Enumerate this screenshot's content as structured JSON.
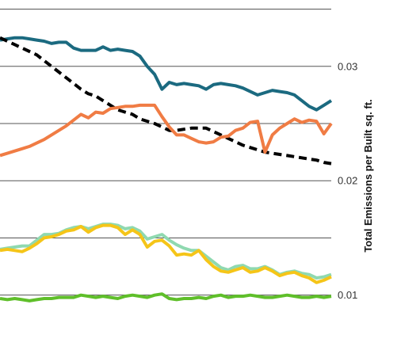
{
  "chart_data": {
    "type": "line",
    "title": "",
    "xlabel": "",
    "ylabel": "Total Emissions per Built sq. ft.",
    "ylim": [
      0.0052,
      0.0358
    ],
    "yticks": [
      0.01,
      0.02,
      0.03
    ],
    "ytick_labels": [
      "0.01",
      "0.02",
      "0.03"
    ],
    "grid": true,
    "legend": "none",
    "x": [
      1,
      2,
      3,
      4,
      5,
      6,
      7,
      8,
      9,
      10,
      11,
      12,
      13,
      14,
      15,
      16,
      17,
      18,
      19,
      20,
      21,
      22,
      23,
      24,
      25,
      26,
      27,
      28,
      29,
      30,
      31,
      32,
      33,
      34,
      35,
      36,
      37,
      38,
      39,
      40,
      41,
      42,
      43,
      44,
      45,
      46
    ],
    "series": [
      {
        "color": "#1b6a80",
        "style": "solid",
        "values": [
          0.0323,
          0.0324,
          0.0325,
          0.0325,
          0.0324,
          0.0323,
          0.0322,
          0.032,
          0.0321,
          0.0321,
          0.0316,
          0.0314,
          0.0314,
          0.0314,
          0.0317,
          0.0314,
          0.0315,
          0.0314,
          0.0313,
          0.0309,
          0.03,
          0.0293,
          0.028,
          0.0286,
          0.0284,
          0.0285,
          0.0284,
          0.0283,
          0.028,
          0.0284,
          0.0285,
          0.0284,
          0.0283,
          0.0281,
          0.0278,
          0.0275,
          0.0277,
          0.0279,
          0.0278,
          0.0277,
          0.0275,
          0.027,
          0.0265,
          0.0262,
          0.0266,
          0.027
        ]
      },
      {
        "color": "#000000",
        "style": "dashed",
        "values": [
          0.0325,
          0.0322,
          0.0319,
          0.0316,
          0.0313,
          0.031,
          0.0305,
          0.03,
          0.0295,
          0.029,
          0.0285,
          0.028,
          0.0276,
          0.0274,
          0.027,
          0.0266,
          0.0262,
          0.026,
          0.0258,
          0.0254,
          0.0252,
          0.025,
          0.0247,
          0.0244,
          0.0244,
          0.0245,
          0.0246,
          0.0246,
          0.0246,
          0.0243,
          0.024,
          0.0237,
          0.0234,
          0.0231,
          0.0229,
          0.0227,
          0.0225,
          0.0224,
          0.0223,
          0.0222,
          0.0221,
          0.022,
          0.0219,
          0.0218,
          0.0216,
          0.0215
        ]
      },
      {
        "color": "#f07c44",
        "style": "solid",
        "values": [
          0.0222,
          0.0224,
          0.0226,
          0.0228,
          0.023,
          0.0233,
          0.0236,
          0.024,
          0.0244,
          0.0248,
          0.0253,
          0.0258,
          0.0255,
          0.026,
          0.0259,
          0.0263,
          0.0264,
          0.0265,
          0.0265,
          0.0266,
          0.0266,
          0.0266,
          0.0256,
          0.0247,
          0.024,
          0.024,
          0.0237,
          0.0234,
          0.0233,
          0.0234,
          0.0238,
          0.0239,
          0.0244,
          0.0246,
          0.0251,
          0.0252,
          0.0225,
          0.024,
          0.0246,
          0.025,
          0.0254,
          0.0251,
          0.0253,
          0.0252,
          0.0241,
          0.025
        ]
      },
      {
        "color": "#8fd9b0",
        "style": "solid",
        "values": [
          0.014,
          0.0141,
          0.0142,
          0.0143,
          0.0143,
          0.0148,
          0.0153,
          0.0153,
          0.0154,
          0.0157,
          0.0159,
          0.016,
          0.0158,
          0.016,
          0.0162,
          0.0162,
          0.0161,
          0.0158,
          0.0159,
          0.0156,
          0.0149,
          0.0151,
          0.0153,
          0.0148,
          0.0144,
          0.0141,
          0.0139,
          0.0139,
          0.0134,
          0.0129,
          0.0124,
          0.0122,
          0.0125,
          0.0126,
          0.0123,
          0.0123,
          0.0125,
          0.0122,
          0.0118,
          0.012,
          0.0121,
          0.0119,
          0.0118,
          0.0115,
          0.0116,
          0.0118
        ]
      },
      {
        "color": "#f5c518",
        "style": "solid",
        "values": [
          0.0139,
          0.014,
          0.0139,
          0.0138,
          0.0141,
          0.0145,
          0.015,
          0.0151,
          0.0153,
          0.0156,
          0.0157,
          0.016,
          0.0155,
          0.0159,
          0.0161,
          0.0161,
          0.0159,
          0.0153,
          0.0157,
          0.0153,
          0.0142,
          0.0147,
          0.0148,
          0.0143,
          0.0135,
          0.0136,
          0.0135,
          0.0139,
          0.0131,
          0.0125,
          0.0121,
          0.012,
          0.0122,
          0.0124,
          0.012,
          0.0121,
          0.0124,
          0.0121,
          0.0117,
          0.0119,
          0.012,
          0.0117,
          0.0115,
          0.0111,
          0.0113,
          0.0116
        ]
      },
      {
        "color": "#5fbf2a",
        "style": "solid",
        "values": [
          0.0097,
          0.0096,
          0.0097,
          0.0096,
          0.0095,
          0.0096,
          0.0097,
          0.0097,
          0.0098,
          0.0098,
          0.0098,
          0.01,
          0.0099,
          0.0098,
          0.0099,
          0.0098,
          0.0097,
          0.0099,
          0.01,
          0.0099,
          0.0098,
          0.01,
          0.0101,
          0.0097,
          0.0096,
          0.0097,
          0.0097,
          0.0098,
          0.0097,
          0.0099,
          0.01,
          0.0098,
          0.0099,
          0.0099,
          0.01,
          0.0099,
          0.0098,
          0.0098,
          0.0099,
          0.01,
          0.0099,
          0.0098,
          0.0098,
          0.0099,
          0.0098,
          0.0099
        ]
      }
    ]
  }
}
